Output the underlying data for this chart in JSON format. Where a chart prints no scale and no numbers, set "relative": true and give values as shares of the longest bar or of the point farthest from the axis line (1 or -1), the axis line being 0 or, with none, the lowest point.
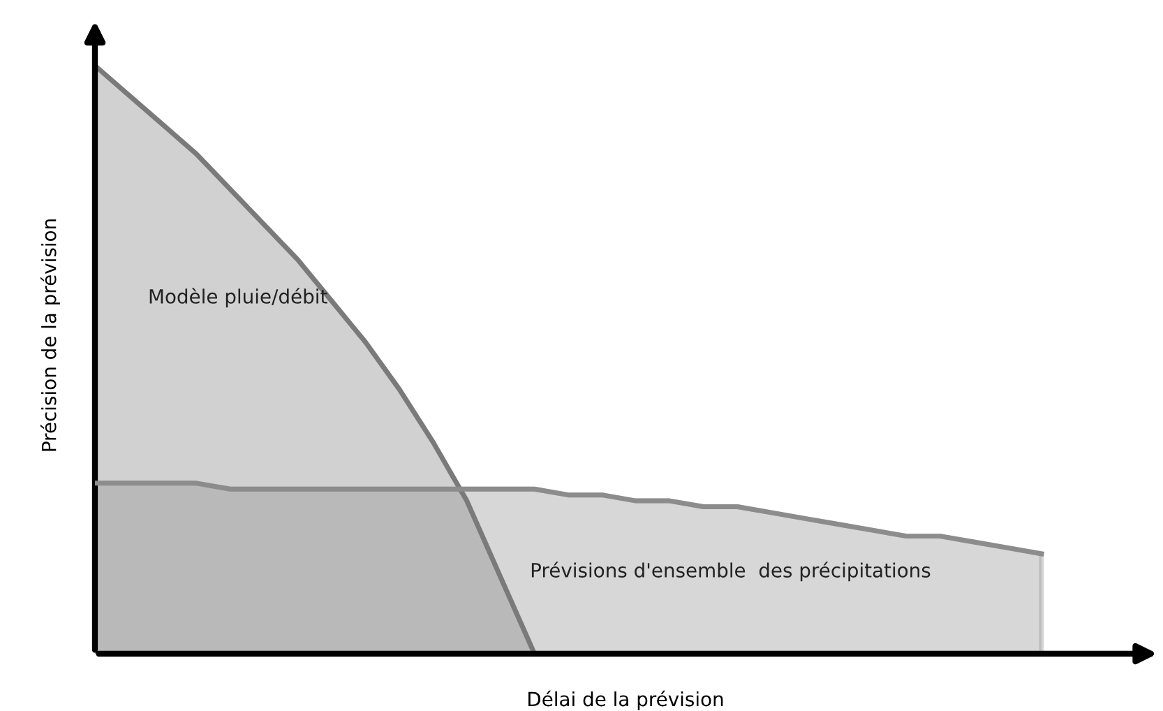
{
  "chart_data": {
    "type": "area",
    "relative": true,
    "xlabel": "Délai de la prévision",
    "ylabel": "Précision de la prévision",
    "legend": false,
    "categories": [
      null,
      null,
      null,
      null,
      null,
      null,
      null,
      null,
      null,
      null,
      null,
      null,
      null,
      null,
      null,
      null,
      null,
      null,
      null,
      null,
      null,
      null,
      null,
      null,
      null,
      null,
      null,
      null,
      null
    ],
    "series": [
      {
        "name": "Modèle pluie/débit",
        "color": "#7a7a7a",
        "values": [
          1,
          0.95,
          0.9,
          0.85,
          0.79,
          0.73,
          0.67,
          0.6,
          0.53,
          0.45,
          0.36,
          0.26,
          0.13,
          0,
          null,
          null,
          null,
          null,
          null,
          null,
          null,
          null,
          null,
          null,
          null,
          null,
          null,
          null,
          null
        ]
      },
      {
        "name": "Prévisions d'ensemble  des précipitations",
        "color": "#8c8c8c",
        "values": [
          0.29,
          0.29,
          0.29,
          0.29,
          0.28,
          0.28,
          0.28,
          0.28,
          0.28,
          0.28,
          0.28,
          0.28,
          0.28,
          0.28,
          0.27,
          0.27,
          0.26,
          0.26,
          0.25,
          0.25,
          0.24,
          0.23,
          0.22,
          0.21,
          0.2,
          0.2,
          0.19,
          0.18,
          0.17
        ]
      }
    ]
  }
}
